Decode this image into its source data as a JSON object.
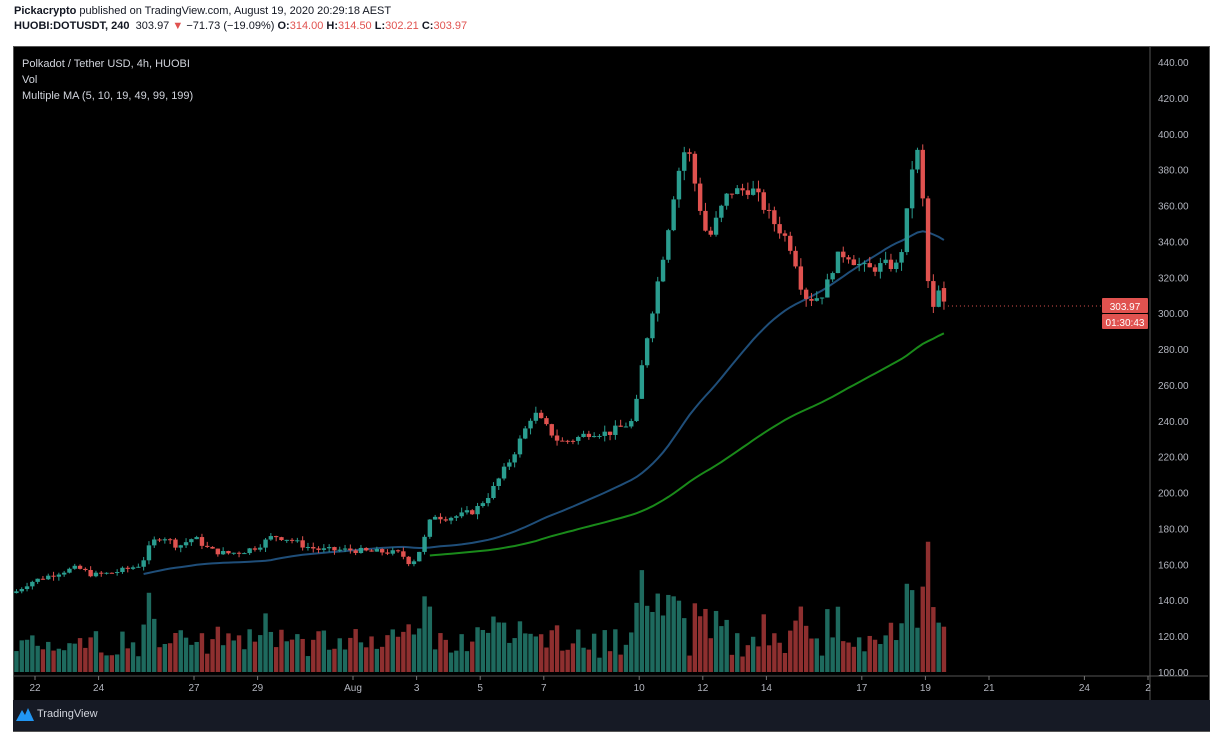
{
  "header": {
    "author": "Pickacrypto",
    "published": " published on TradingView.com, August 19, 2020 20:29:18 AEST",
    "symbol": "HUOBI:DOTUSDT, 240",
    "last": "303.97",
    "change": "−71.73 (−19.09%)",
    "o_label": "O:",
    "o": "314.00",
    "h_label": "H:",
    "h": "314.50",
    "l_label": "L:",
    "l": "302.21",
    "c_label": "C:",
    "c": "303.97"
  },
  "legend": {
    "title": "Polkadot / Tether USD, 4h, HUOBI",
    "vol": "Vol",
    "ma": "Multiple MA (5, 10, 19, 49, 99, 199)"
  },
  "price_tag": "303.97",
  "countdown": "01:30:43",
  "footer": {
    "brand": "TradingView"
  },
  "colors": {
    "up": "#2a9d8f",
    "down": "#e0524f",
    "vol_up": "#1e6a5e",
    "vol_down": "#8e2f2f",
    "ma_blue": "#1f4e79",
    "ma_green": "#1a8a1a"
  },
  "chart_data": {
    "type": "candlestick",
    "interval": "4h",
    "ylim": [
      100,
      440
    ],
    "y_ticks": [
      "440.00",
      "420.00",
      "400.00",
      "380.00",
      "360.00",
      "340.00",
      "320.00",
      "300.00",
      "280.00",
      "260.00",
      "240.00",
      "220.00",
      "200.00",
      "180.00",
      "160.00",
      "140.00",
      "120.00",
      "100.00"
    ],
    "x_ticks": [
      {
        "label": "22",
        "date": "2020-07-22"
      },
      {
        "label": "24",
        "date": "2020-07-24"
      },
      {
        "label": "27",
        "date": "2020-07-27"
      },
      {
        "label": "29",
        "date": "2020-07-29"
      },
      {
        "label": "Aug",
        "date": "2020-08-01"
      },
      {
        "label": "3",
        "date": "2020-08-03"
      },
      {
        "label": "5",
        "date": "2020-08-05"
      },
      {
        "label": "7",
        "date": "2020-08-07"
      },
      {
        "label": "10",
        "date": "2020-08-10"
      },
      {
        "label": "12",
        "date": "2020-08-12"
      },
      {
        "label": "14",
        "date": "2020-08-14"
      },
      {
        "label": "17",
        "date": "2020-08-17"
      },
      {
        "label": "19",
        "date": "2020-08-19"
      },
      {
        "label": "21",
        "date": "2020-08-21"
      },
      {
        "label": "24",
        "date": "2020-08-24"
      },
      {
        "label": "2",
        "date": "2020-08-26"
      }
    ],
    "close_path": [
      [
        "2020-07-21T10",
        145
      ],
      [
        "2020-07-21T20",
        150
      ],
      [
        "2020-07-22T08",
        153
      ],
      [
        "2020-07-22T20",
        156
      ],
      [
        "2020-07-23T08",
        158
      ],
      [
        "2020-07-23T20",
        154
      ],
      [
        "2020-07-24T08",
        155
      ],
      [
        "2020-07-24T20",
        157
      ],
      [
        "2020-07-25T08",
        160
      ],
      [
        "2020-07-25T16",
        172
      ],
      [
        "2020-07-26T00",
        176
      ],
      [
        "2020-07-26T12",
        170
      ],
      [
        "2020-07-27T00",
        175
      ],
      [
        "2020-07-27T12",
        168
      ],
      [
        "2020-07-28T00",
        166
      ],
      [
        "2020-07-28T12",
        167
      ],
      [
        "2020-07-29T00",
        170
      ],
      [
        "2020-07-29T12",
        176
      ],
      [
        "2020-07-30T00",
        174
      ],
      [
        "2020-07-30T12",
        170
      ],
      [
        "2020-07-31T00",
        168
      ],
      [
        "2020-07-31T12",
        168
      ],
      [
        "2020-08-01T00",
        168
      ],
      [
        "2020-08-01T12",
        167
      ],
      [
        "2020-08-02T00",
        167
      ],
      [
        "2020-08-02T12",
        166
      ],
      [
        "2020-08-02T20",
        160
      ],
      [
        "2020-08-03T04",
        170
      ],
      [
        "2020-08-03T12",
        188
      ],
      [
        "2020-08-03T20",
        186
      ],
      [
        "2020-08-04T08",
        187
      ],
      [
        "2020-08-04T20",
        190
      ],
      [
        "2020-08-05T08",
        200
      ],
      [
        "2020-08-05T16",
        210
      ],
      [
        "2020-08-06T00",
        220
      ],
      [
        "2020-08-06T08",
        232
      ],
      [
        "2020-08-06T16",
        245
      ],
      [
        "2020-08-07T00",
        238
      ],
      [
        "2020-08-07T12",
        228
      ],
      [
        "2020-08-08T00",
        230
      ],
      [
        "2020-08-08T12",
        234
      ],
      [
        "2020-08-09T00",
        233
      ],
      [
        "2020-08-09T12",
        237
      ],
      [
        "2020-08-09T20",
        240
      ],
      [
        "2020-08-10T04",
        280
      ],
      [
        "2020-08-10T12",
        310
      ],
      [
        "2020-08-10T20",
        340
      ],
      [
        "2020-08-11T04",
        375
      ],
      [
        "2020-08-11T12",
        395
      ],
      [
        "2020-08-11T20",
        365
      ],
      [
        "2020-08-12T04",
        340
      ],
      [
        "2020-08-12T12",
        355
      ],
      [
        "2020-08-12T20",
        368
      ],
      [
        "2020-08-13T04",
        368
      ],
      [
        "2020-08-13T12",
        370
      ],
      [
        "2020-08-13T20",
        362
      ],
      [
        "2020-08-14T04",
        352
      ],
      [
        "2020-08-14T12",
        345
      ],
      [
        "2020-08-14T20",
        335
      ],
      [
        "2020-08-15T04",
        310
      ],
      [
        "2020-08-15T12",
        308
      ],
      [
        "2020-08-15T20",
        312
      ],
      [
        "2020-08-16T04",
        330
      ],
      [
        "2020-08-16T12",
        334
      ],
      [
        "2020-08-16T20",
        328
      ],
      [
        "2020-08-17T04",
        324
      ],
      [
        "2020-08-17T12",
        326
      ],
      [
        "2020-08-17T20",
        327
      ],
      [
        "2020-08-18T04",
        326
      ],
      [
        "2020-08-18T12",
        365
      ],
      [
        "2020-08-18T16",
        398
      ],
      [
        "2020-08-18T20",
        380
      ],
      [
        "2020-08-19T00",
        345
      ],
      [
        "2020-08-19T04",
        290
      ],
      [
        "2020-08-19T08",
        314
      ],
      [
        "2020-08-19T16",
        303.97
      ]
    ]
  }
}
